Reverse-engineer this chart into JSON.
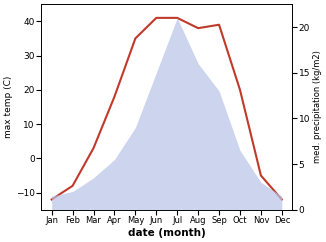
{
  "months": [
    "Jan",
    "Feb",
    "Mar",
    "Apr",
    "May",
    "Jun",
    "Jul",
    "Aug",
    "Sep",
    "Oct",
    "Nov",
    "Dec"
  ],
  "temp": [
    -12,
    -8,
    3,
    18,
    35,
    41,
    41,
    38,
    39,
    20,
    -5,
    -12
  ],
  "precip": [
    1.5,
    2.0,
    3.5,
    5.5,
    9.0,
    15,
    21,
    16,
    13,
    6.5,
    3.0,
    1.5
  ],
  "temp_color": "#c0392b",
  "precip_fill_color": "#b8c4e8",
  "temp_ylim": [
    -15,
    45
  ],
  "precip_ylim": [
    0,
    22.5
  ],
  "temp_yticks": [
    -10,
    0,
    10,
    20,
    30,
    40
  ],
  "precip_yticks": [
    0,
    5,
    10,
    15,
    20
  ],
  "xlabel": "date (month)",
  "ylabel_left": "max temp (C)",
  "ylabel_right": "med. precipitation (kg/m2)"
}
